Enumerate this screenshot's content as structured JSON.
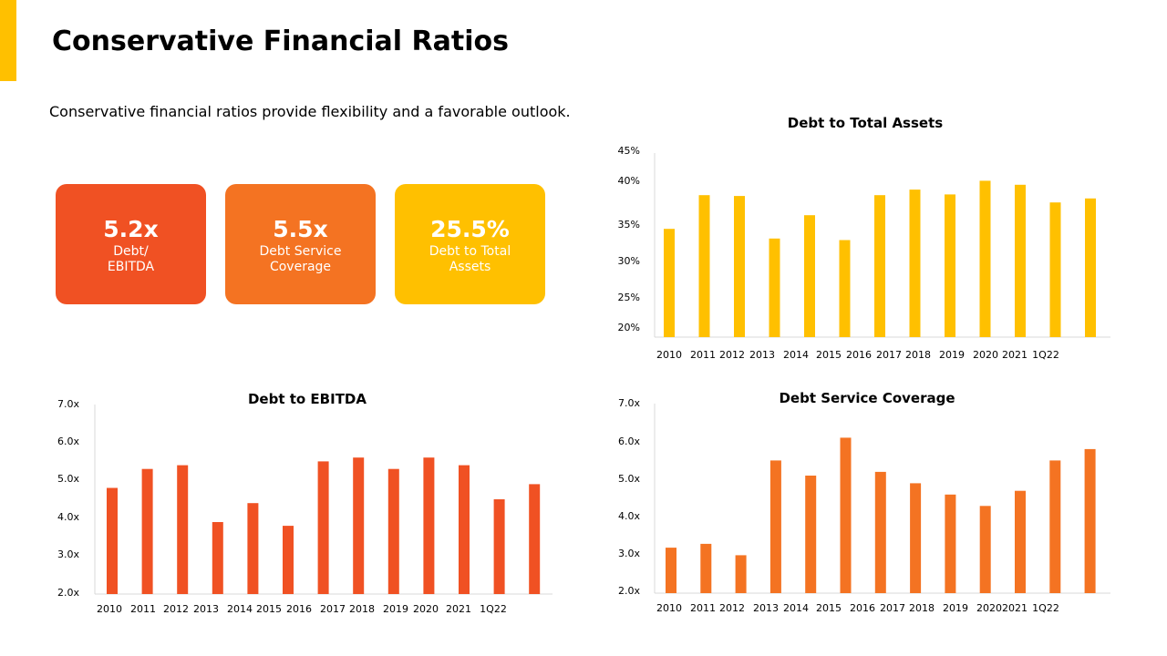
{
  "title": "Conservative Financial Ratios",
  "subtitle": "Conservative financial ratios provide flexibility and a favorable outlook.",
  "colors": {
    "accent": "#FFC000",
    "red": "#F05123",
    "orange": "#F47322",
    "yellow": "#FFC000"
  },
  "kpis": [
    {
      "value": "5.2x",
      "label": "Debt/ EBITDA"
    },
    {
      "value": "5.5x",
      "label": "Debt Service Coverage"
    },
    {
      "value": "25.5%",
      "label": "Debt to Total Assets"
    }
  ],
  "chart_data": [
    {
      "id": "assets",
      "type": "bar",
      "title": "Debt to Total Assets",
      "categories": [
        "2010",
        "2011",
        "2012",
        "2013",
        "2014",
        "2015",
        "2016",
        "2017",
        "2018",
        "2019",
        "2020",
        "2021",
        "1Q22"
      ],
      "values": [
        33.5,
        37.7,
        37.6,
        32.3,
        35.2,
        32.1,
        37.7,
        38.4,
        37.8,
        39.5,
        39.0,
        36.8,
        37.3
      ],
      "yticks": [
        "45%",
        "40%",
        "35%",
        "30%",
        "25%",
        "20%"
      ],
      "ylim": [
        20,
        45
      ],
      "color": "#FFC000"
    },
    {
      "id": "ebitda",
      "type": "bar",
      "title": "Debt to EBITDA",
      "categories": [
        "2010",
        "2011",
        "2012",
        "2013",
        "2014",
        "2015",
        "2016",
        "2017",
        "2018",
        "2019",
        "2020",
        "2021",
        "1Q22"
      ],
      "values": [
        4.8,
        5.3,
        5.4,
        3.9,
        4.4,
        3.8,
        5.5,
        5.6,
        5.3,
        5.6,
        5.4,
        4.5,
        4.9
      ],
      "yticks": [
        "7.0x",
        "6.0x",
        "5.0x",
        "4.0x",
        "3.0x",
        "2.0x"
      ],
      "ylim": [
        2,
        7
      ],
      "color": "#F05123"
    },
    {
      "id": "coverage",
      "type": "bar",
      "title": "Debt Service Coverage",
      "categories": [
        "2010",
        "2011",
        "2012",
        "2013",
        "2014",
        "2015",
        "2016",
        "2017",
        "2018",
        "2019",
        "2020",
        "2021",
        "1Q22"
      ],
      "values": [
        3.2,
        3.3,
        3.0,
        5.5,
        5.1,
        6.1,
        5.2,
        4.9,
        4.6,
        4.3,
        4.7,
        5.5,
        5.8
      ],
      "yticks": [
        "7.0x",
        "6.0x",
        "5.0x",
        "4.0x",
        "3.0x",
        "2.0x"
      ],
      "ylim": [
        2,
        7
      ],
      "color": "#F47322"
    }
  ]
}
